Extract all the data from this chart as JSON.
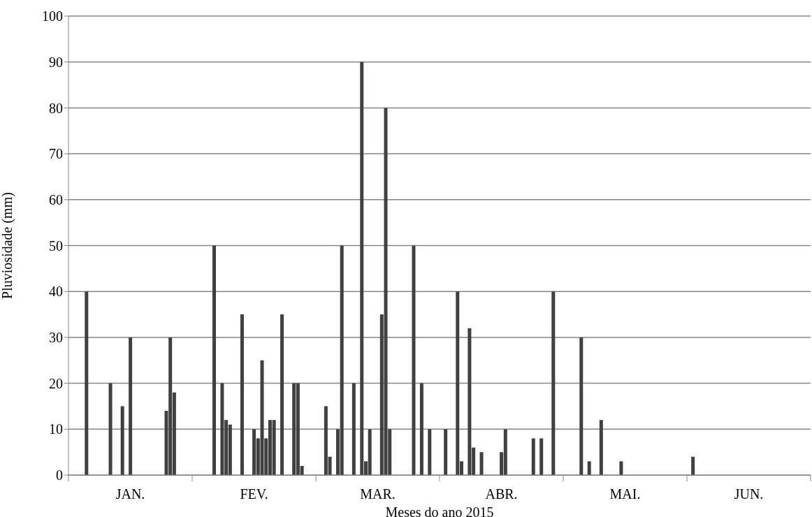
{
  "chart_data": {
    "type": "bar",
    "xlabel": "Meses do ano 2015",
    "ylabel": "Pluviosidade (mm)",
    "color": "#404040",
    "ylim": [
      0,
      100
    ],
    "yticks": [
      0,
      10,
      20,
      30,
      40,
      50,
      60,
      70,
      80,
      90,
      100
    ],
    "grid": "y",
    "categories": [
      null,
      null,
      null,
      null,
      null,
      null,
      null,
      null,
      null,
      null,
      null,
      null,
      null,
      null,
      null,
      "JAN.",
      null,
      null,
      null,
      null,
      null,
      null,
      null,
      null,
      null,
      null,
      null,
      null,
      null,
      null,
      null,
      null,
      null,
      null,
      null,
      null,
      null,
      null,
      null,
      null,
      null,
      null,
      null,
      null,
      null,
      null,
      "FEV.",
      null,
      null,
      null,
      null,
      null,
      null,
      null,
      null,
      null,
      null,
      null,
      null,
      null,
      null,
      null,
      null,
      null,
      null,
      null,
      null,
      null,
      null,
      null,
      null,
      null,
      null,
      null,
      null,
      null,
      null,
      "MAR.",
      null,
      null,
      null,
      null,
      null,
      null,
      null,
      null,
      null,
      null,
      null,
      null,
      null,
      null,
      null,
      null,
      null,
      null,
      null,
      null,
      null,
      null,
      null,
      null,
      null,
      null,
      null,
      null,
      null,
      null,
      "ABR.",
      null,
      null,
      null,
      null,
      null,
      null,
      null,
      null,
      null,
      null,
      null,
      null,
      null,
      null,
      null,
      null,
      null,
      null,
      null,
      null,
      null,
      null,
      null,
      null,
      null,
      null,
      null,
      null,
      null,
      null,
      "MAI.",
      null,
      null,
      null,
      null,
      null,
      null,
      null,
      null,
      null,
      null,
      null,
      null,
      null,
      null,
      null,
      null,
      null,
      null,
      null,
      null,
      null,
      null,
      null,
      null,
      null,
      null,
      null,
      null,
      null,
      null,
      "JUN.",
      null,
      null,
      null,
      null,
      null,
      null,
      null,
      null,
      null,
      null,
      null,
      null,
      null,
      null,
      null
    ],
    "values": [
      null,
      null,
      null,
      null,
      40,
      null,
      null,
      null,
      null,
      null,
      20,
      null,
      null,
      15,
      null,
      30,
      null,
      null,
      null,
      null,
      null,
      null,
      null,
      null,
      14,
      30,
      18,
      null,
      null,
      null,
      null,
      null,
      null,
      null,
      null,
      null,
      50,
      null,
      20,
      12,
      11,
      null,
      null,
      35,
      null,
      null,
      10,
      8,
      25,
      8,
      12,
      12,
      null,
      35,
      null,
      null,
      20,
      20,
      2,
      null,
      null,
      null,
      null,
      null,
      15,
      4,
      null,
      10,
      50,
      null,
      null,
      20,
      null,
      90,
      3,
      10,
      null,
      null,
      35,
      80,
      10,
      null,
      null,
      null,
      null,
      null,
      50,
      null,
      20,
      null,
      10,
      null,
      null,
      null,
      10,
      null,
      null,
      40,
      3,
      null,
      32,
      6,
      null,
      5,
      null,
      null,
      null,
      null,
      5,
      10,
      null,
      null,
      null,
      null,
      null,
      null,
      8,
      null,
      8,
      null,
      null,
      40,
      null,
      null,
      null,
      null,
      null,
      null,
      30,
      null,
      3,
      null,
      null,
      12,
      null,
      null,
      null,
      null,
      3,
      null,
      null,
      null,
      null,
      null,
      null,
      null,
      null,
      null,
      null,
      null,
      null,
      null,
      null,
      null,
      null,
      null,
      4,
      null,
      null,
      null,
      null,
      null,
      null,
      null,
      null,
      null,
      null,
      null,
      null,
      null,
      null,
      null,
      null,
      null,
      null,
      null,
      null,
      null,
      null,
      null,
      null,
      null,
      null,
      null,
      null,
      null
    ]
  }
}
